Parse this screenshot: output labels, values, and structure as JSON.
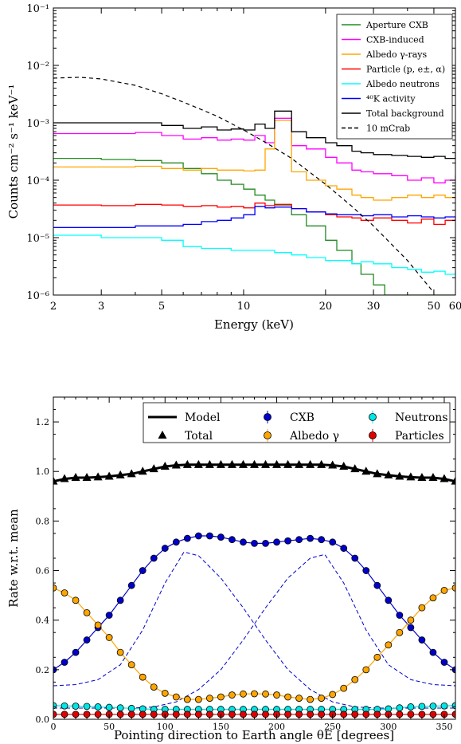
{
  "chart_data": [
    {
      "type": "line",
      "xlabel": "Energy (keV)",
      "ylabel": "Counts cm⁻² s⁻¹ keV⁻¹",
      "xscale": "log",
      "yscale": "log",
      "xlim": [
        2,
        60
      ],
      "ylim": [
        1e-06,
        0.1
      ],
      "x_ticks": [
        2,
        3,
        5,
        10,
        20,
        30,
        50,
        60
      ],
      "x_tick_labels": [
        "2",
        "3",
        "5",
        "10",
        "20",
        "30",
        "50",
        "60"
      ],
      "y_ticks": [
        1e-06,
        1e-05,
        0.0001,
        0.001,
        0.01,
        0.1
      ],
      "y_tick_labels": [
        "10⁻⁶",
        "10⁻⁵",
        "10⁻⁴",
        "10⁻³",
        "10⁻²",
        "10⁻¹"
      ],
      "legend_position": "top-right",
      "series": [
        {
          "name": "Aperture CXB",
          "color": "#228b22",
          "style": "step",
          "x": [
            2,
            3,
            4,
            5,
            6,
            7,
            8,
            9,
            10,
            11,
            12,
            13,
            15,
            17,
            20,
            22,
            25,
            27,
            30,
            33
          ],
          "y": [
            0.00024,
            0.00023,
            0.00022,
            0.0002,
            0.00016,
            0.00013,
            0.0001,
            8.5e-05,
            7e-05,
            5.5e-05,
            4.5e-05,
            3.7e-05,
            2.5e-05,
            1.6e-05,
            9e-06,
            6e-06,
            3.5e-06,
            2.3e-06,
            1.5e-06,
            1e-06
          ]
        },
        {
          "name": "CXB-induced",
          "color": "#ff00ff",
          "style": "step",
          "x": [
            2,
            3,
            4,
            5,
            6,
            7,
            8,
            9,
            10,
            11,
            12,
            13,
            15,
            17,
            20,
            22,
            25,
            27,
            30,
            35,
            40,
            45,
            50,
            55,
            60
          ],
          "y": [
            0.00065,
            0.00065,
            0.00068,
            0.0006,
            0.00052,
            0.00055,
            0.0005,
            0.00052,
            0.0005,
            0.0006,
            0.00045,
            0.0012,
            0.0004,
            0.00035,
            0.00025,
            0.0002,
            0.00015,
            0.00014,
            0.00013,
            0.00012,
            0.0001,
            0.00011,
            9e-05,
            0.0001,
            0.00012
          ]
        },
        {
          "name": "Albedo γ-rays",
          "color": "#ffa500",
          "style": "step",
          "x": [
            2,
            3,
            4,
            5,
            6,
            7,
            8,
            9,
            10,
            11,
            12,
            13,
            15,
            17,
            20,
            22,
            25,
            27,
            30,
            35,
            40,
            45,
            50,
            55,
            60
          ],
          "y": [
            0.00017,
            0.00017,
            0.000175,
            0.00016,
            0.00015,
            0.00016,
            0.00015,
            0.00015,
            0.000145,
            0.00015,
            0.00035,
            0.0011,
            0.00014,
            0.0001,
            8e-05,
            7e-05,
            5.5e-05,
            5e-05,
            4.5e-05,
            5e-05,
            5.5e-05,
            5e-05,
            5.5e-05,
            5e-05,
            5.5e-05
          ]
        },
        {
          "name": "Particle (p, e±, α)",
          "color": "#ff0000",
          "style": "step",
          "x": [
            2,
            3,
            4,
            5,
            6,
            7,
            8,
            9,
            10,
            11,
            12,
            13,
            15,
            17,
            20,
            22,
            25,
            27,
            30,
            35,
            40,
            45,
            50,
            55,
            60
          ],
          "y": [
            3.7e-05,
            3.6e-05,
            3.8e-05,
            3.7e-05,
            3.5e-05,
            3.6e-05,
            3.4e-05,
            3.5e-05,
            3.3e-05,
            4e-05,
            3.6e-05,
            3.8e-05,
            3.2e-05,
            2.8e-05,
            2.5e-05,
            2.3e-05,
            2.2e-05,
            2e-05,
            2.2e-05,
            2e-05,
            1.8e-05,
            2.1e-05,
            1.7e-05,
            2e-05,
            2.3e-05
          ]
        },
        {
          "name": "Albedo neutrons",
          "color": "#00ffff",
          "style": "step",
          "x": [
            2,
            3,
            4,
            5,
            6,
            7,
            8,
            9,
            10,
            11,
            12,
            13,
            15,
            17,
            20,
            22,
            25,
            27,
            30,
            35,
            40,
            45,
            50,
            55,
            60
          ],
          "y": [
            1.1e-05,
            1e-05,
            1e-05,
            9e-06,
            7e-06,
            6.5e-06,
            6.5e-06,
            6e-06,
            6e-06,
            6e-06,
            6e-06,
            5.5e-06,
            5e-06,
            4.5e-06,
            4e-06,
            4e-06,
            3.5e-06,
            3.8e-06,
            3.5e-06,
            3e-06,
            2.8e-06,
            2.5e-06,
            2.6e-06,
            2.3e-06,
            2.5e-06
          ]
        },
        {
          "name": "⁴⁰K activity",
          "color": "#0000ff",
          "style": "step",
          "x": [
            2,
            3,
            4,
            5,
            6,
            7,
            8,
            9,
            10,
            11,
            12,
            13,
            15,
            17,
            20,
            22,
            25,
            27,
            30,
            35,
            40,
            45,
            50,
            55,
            60
          ],
          "y": [
            1.5e-05,
            1.5e-05,
            1.6e-05,
            1.6e-05,
            1.7e-05,
            1.9e-05,
            2e-05,
            2.2e-05,
            2.5e-05,
            3.5e-05,
            3.3e-05,
            3.4e-05,
            3.2e-05,
            2.8e-05,
            2.6e-05,
            2.5e-05,
            2.5e-05,
            2.4e-05,
            2.5e-05,
            2.3e-05,
            2.4e-05,
            2.3e-05,
            2.2e-05,
            2.3e-05,
            2.4e-05
          ]
        },
        {
          "name": "Total background",
          "color": "#000000",
          "style": "step",
          "x": [
            2,
            3,
            4,
            5,
            6,
            7,
            8,
            9,
            10,
            11,
            12,
            13,
            15,
            17,
            20,
            22,
            25,
            27,
            30,
            35,
            40,
            45,
            50,
            55,
            60
          ],
          "y": [
            0.001,
            0.001,
            0.001,
            0.0009,
            0.0008,
            0.00085,
            0.00075,
            0.00078,
            0.00075,
            0.00095,
            0.0008,
            0.0016,
            0.0007,
            0.00055,
            0.00045,
            0.0004,
            0.00032,
            0.0003,
            0.00028,
            0.00027,
            0.00026,
            0.00025,
            0.00026,
            0.00024,
            0.0003
          ]
        },
        {
          "name": "10 mCrab",
          "color": "#000000",
          "style": "dashed",
          "x": [
            2,
            2.5,
            3,
            4,
            5,
            6,
            7,
            8,
            10,
            12,
            15,
            20,
            25,
            30,
            40,
            50
          ],
          "y": [
            0.006,
            0.0062,
            0.0058,
            0.0045,
            0.0032,
            0.0023,
            0.0017,
            0.0013,
            0.00075,
            0.00046,
            0.00024,
            8.5e-05,
            3.5e-05,
            1.6e-05,
            4e-06,
            1.1e-06
          ]
        }
      ]
    },
    {
      "type": "line",
      "xlabel": "Pointing direction to Earth angle θE [degrees]",
      "ylabel": "Rate w.r.t. mean",
      "xlim": [
        0,
        360
      ],
      "ylim": [
        0,
        1.3
      ],
      "x_ticks": [
        0,
        50,
        100,
        150,
        200,
        250,
        300,
        350
      ],
      "x_tick_labels": [
        "0",
        "50",
        "100",
        "150",
        "200",
        "250",
        "300",
        "350"
      ],
      "y_ticks": [
        0.0,
        0.2,
        0.4,
        0.6,
        0.8,
        1.0,
        1.2
      ],
      "y_tick_labels": [
        "0.0",
        "0.2",
        "0.4",
        "0.6",
        "0.8",
        "1.0",
        "1.2"
      ],
      "legend_position": "top",
      "legend": [
        "Model",
        "Total",
        "CXB",
        "Albedo γ",
        "Neutrons",
        "Particles"
      ],
      "x": [
        0,
        10,
        20,
        30,
        40,
        50,
        60,
        70,
        80,
        90,
        100,
        110,
        120,
        130,
        140,
        150,
        160,
        170,
        180,
        190,
        200,
        210,
        220,
        230,
        240,
        250,
        260,
        270,
        280,
        290,
        300,
        310,
        320,
        330,
        340,
        350,
        360
      ],
      "series": [
        {
          "name": "Total",
          "color": "#000000",
          "marker": "triangle",
          "values": [
            0.96,
            0.97,
            0.975,
            0.975,
            0.977,
            0.98,
            0.985,
            0.99,
            1.0,
            1.01,
            1.02,
            1.025,
            1.027,
            1.027,
            1.027,
            1.027,
            1.027,
            1.027,
            1.027,
            1.027,
            1.027,
            1.027,
            1.027,
            1.027,
            1.027,
            1.025,
            1.02,
            1.01,
            1.0,
            0.99,
            0.985,
            0.98,
            0.977,
            0.975,
            0.975,
            0.97,
            0.96
          ]
        },
        {
          "name": "CXB",
          "color": "#0000cc",
          "marker": "circle",
          "values": [
            0.2,
            0.23,
            0.27,
            0.32,
            0.37,
            0.42,
            0.48,
            0.54,
            0.6,
            0.65,
            0.69,
            0.715,
            0.73,
            0.74,
            0.74,
            0.735,
            0.725,
            0.715,
            0.71,
            0.71,
            0.715,
            0.72,
            0.725,
            0.73,
            0.725,
            0.715,
            0.69,
            0.65,
            0.6,
            0.54,
            0.48,
            0.42,
            0.37,
            0.32,
            0.27,
            0.23,
            0.2
          ]
        },
        {
          "name": "Albedo γ",
          "color": "#ffa500",
          "marker": "circle",
          "values": [
            0.53,
            0.51,
            0.48,
            0.43,
            0.38,
            0.33,
            0.27,
            0.22,
            0.17,
            0.13,
            0.105,
            0.09,
            0.08,
            0.08,
            0.085,
            0.09,
            0.098,
            0.102,
            0.103,
            0.102,
            0.098,
            0.09,
            0.085,
            0.08,
            0.085,
            0.1,
            0.125,
            0.16,
            0.2,
            0.25,
            0.3,
            0.35,
            0.4,
            0.45,
            0.49,
            0.52,
            0.53
          ]
        },
        {
          "name": "Neutrons",
          "color": "#00e5e5",
          "marker": "circle",
          "values": [
            0.055,
            0.054,
            0.053,
            0.052,
            0.05,
            0.048,
            0.046,
            0.044,
            0.042,
            0.04,
            0.04,
            0.04,
            0.04,
            0.04,
            0.04,
            0.04,
            0.04,
            0.04,
            0.04,
            0.04,
            0.04,
            0.04,
            0.04,
            0.04,
            0.04,
            0.04,
            0.04,
            0.04,
            0.04,
            0.04,
            0.042,
            0.046,
            0.05,
            0.052,
            0.053,
            0.054,
            0.055
          ]
        },
        {
          "name": "Particles",
          "color": "#e00000",
          "marker": "circle",
          "values": [
            0.02,
            0.02,
            0.02,
            0.02,
            0.02,
            0.02,
            0.02,
            0.02,
            0.02,
            0.02,
            0.02,
            0.02,
            0.02,
            0.02,
            0.02,
            0.02,
            0.02,
            0.02,
            0.02,
            0.02,
            0.02,
            0.02,
            0.02,
            0.02,
            0.02,
            0.02,
            0.02,
            0.02,
            0.02,
            0.02,
            0.02,
            0.02,
            0.02,
            0.02,
            0.02,
            0.02,
            0.02
          ]
        }
      ],
      "dashed_components": [
        {
          "color": "#0000cc",
          "x": [
            0,
            20,
            40,
            60,
            80,
            100,
            117,
            130,
            150,
            170,
            190,
            210,
            230,
            250,
            270,
            290,
            310,
            330,
            360
          ],
          "y": [
            0.135,
            0.14,
            0.16,
            0.22,
            0.36,
            0.55,
            0.675,
            0.66,
            0.57,
            0.45,
            0.32,
            0.2,
            0.12,
            0.07,
            0.05,
            0.045,
            0.045,
            0.045,
            0.045
          ]
        },
        {
          "color": "#0000cc",
          "x": [
            0,
            30,
            50,
            70,
            90,
            110,
            130,
            150,
            170,
            190,
            210,
            230,
            243,
            260,
            280,
            300,
            320,
            340,
            360
          ],
          "y": [
            0.045,
            0.045,
            0.045,
            0.045,
            0.05,
            0.07,
            0.12,
            0.2,
            0.32,
            0.45,
            0.57,
            0.65,
            0.665,
            0.55,
            0.36,
            0.22,
            0.16,
            0.14,
            0.135
          ]
        }
      ]
    }
  ]
}
